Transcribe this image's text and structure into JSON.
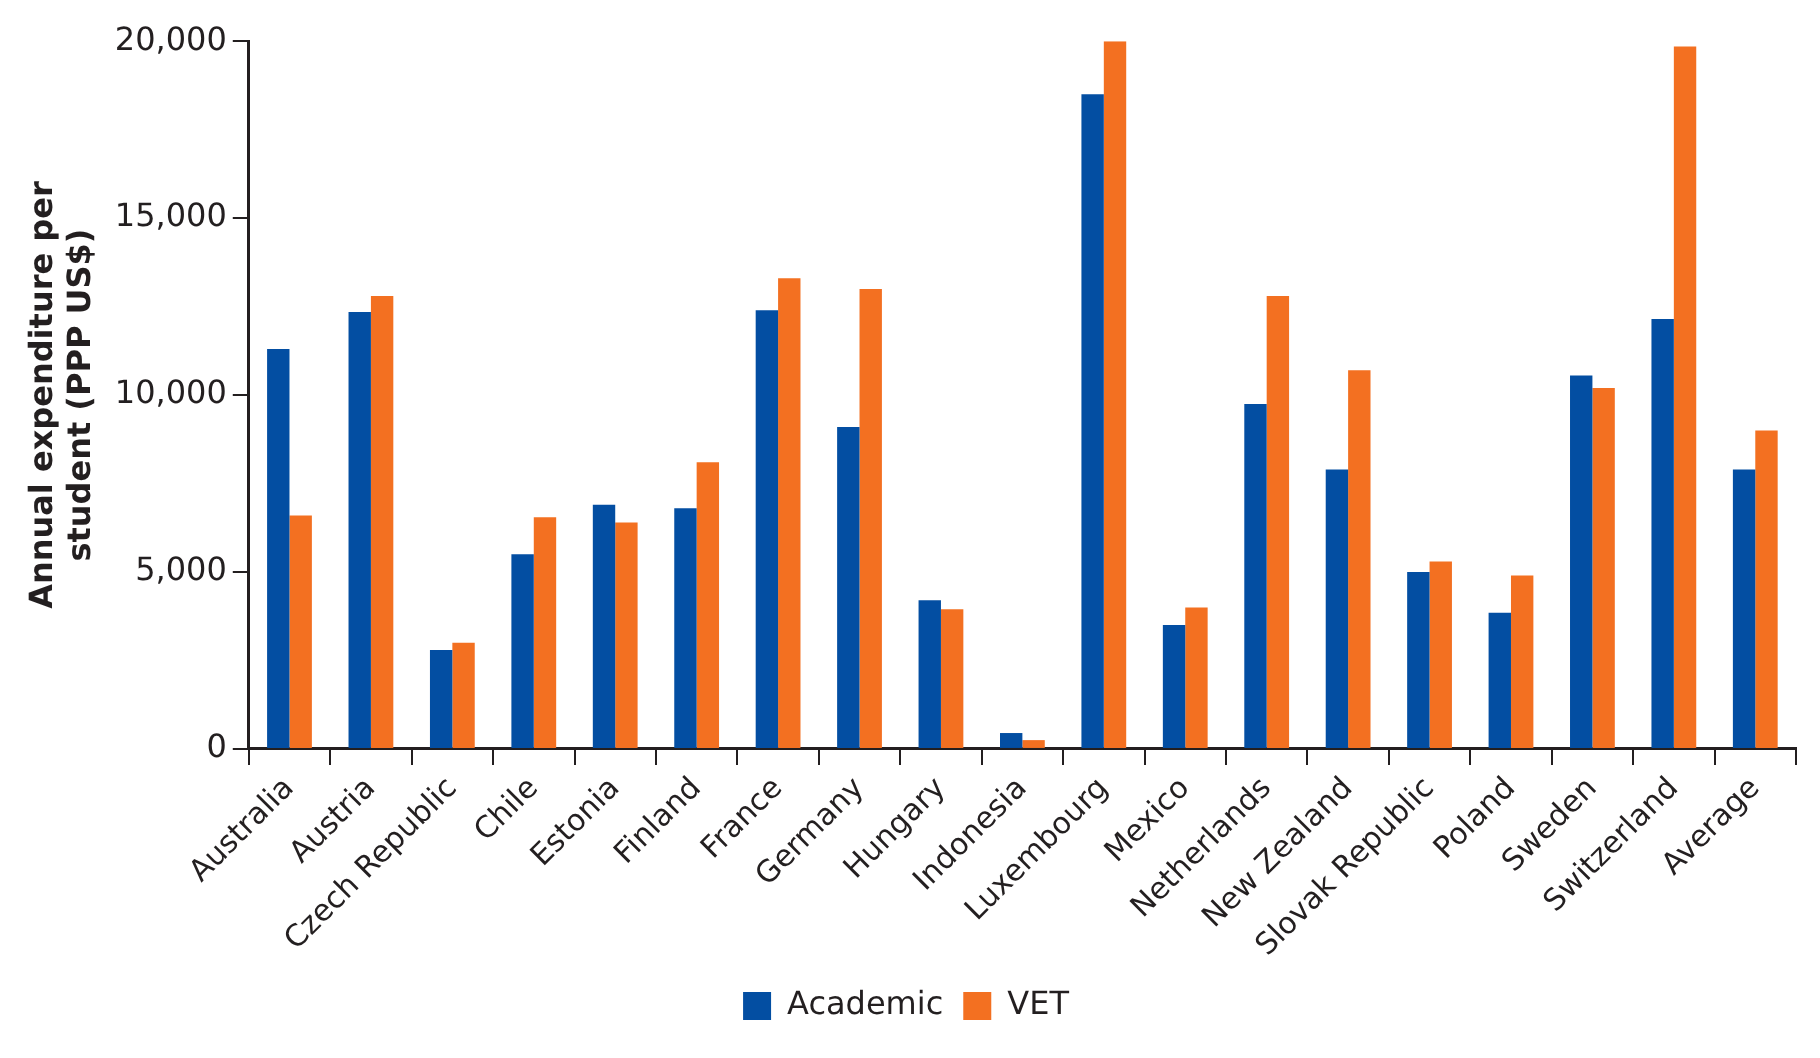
{
  "chart_data": {
    "type": "bar",
    "ylabel": "Annual expenditure per student (PPP US$)",
    "categories": [
      "Australia",
      "Austria",
      "Czech Republic",
      "Chile",
      "Estonia",
      "Finland",
      "France",
      "Germany",
      "Hungary",
      "Indonesia",
      "Luxembourg",
      "Mexico",
      "Netherlands",
      "New Zealand",
      "Slovak Republic",
      "Poland",
      "Sweden",
      "Switzerland",
      "Average"
    ],
    "series": [
      {
        "name": "Academic",
        "color": "#034ea2",
        "values": [
          11300,
          12350,
          2800,
          5500,
          6900,
          6800,
          12400,
          9100,
          4200,
          450,
          18500,
          3500,
          9750,
          7900,
          5000,
          3850,
          10550,
          12150,
          7900
        ]
      },
      {
        "name": "VET",
        "color": "#f37021",
        "values": [
          6600,
          12800,
          3000,
          6550,
          6400,
          8100,
          13300,
          13000,
          3950,
          250,
          20000,
          4000,
          12800,
          10700,
          5300,
          4900,
          10200,
          19850,
          9000
        ]
      }
    ],
    "ylim": [
      0,
      20000
    ],
    "yticks": [
      {
        "value": 0,
        "label": "0"
      },
      {
        "value": 5000,
        "label": "5,000"
      },
      {
        "value": 10000,
        "label": "10,000"
      },
      {
        "value": 15000,
        "label": "15,000"
      },
      {
        "value": 20000,
        "label": "20,000"
      }
    ],
    "grid": false,
    "legend": "bottom"
  }
}
